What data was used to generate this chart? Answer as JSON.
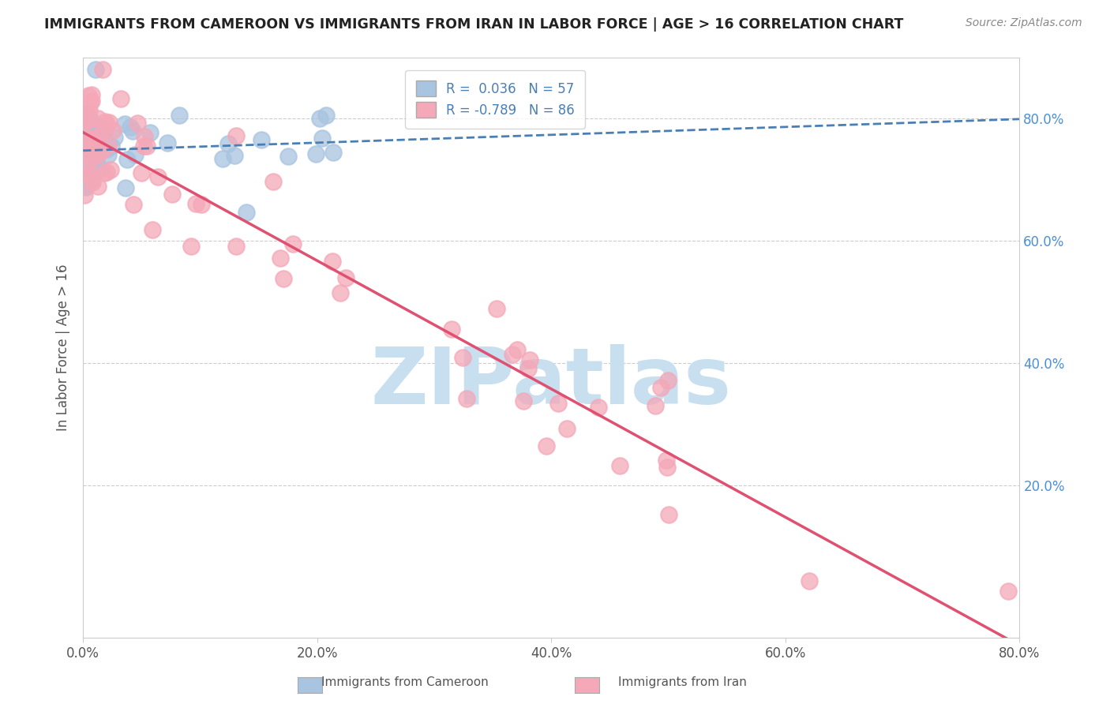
{
  "title": "IMMIGRANTS FROM CAMEROON VS IMMIGRANTS FROM IRAN IN LABOR FORCE | AGE > 16 CORRELATION CHART",
  "source": "Source: ZipAtlas.com",
  "ylabel": "In Labor Force | Age > 16",
  "xlim": [
    0.0,
    0.8
  ],
  "ylim": [
    -0.05,
    0.9
  ],
  "xtick_labels": [
    "0.0%",
    "20.0%",
    "40.0%",
    "60.0%",
    "80.0%"
  ],
  "xtick_vals": [
    0.0,
    0.2,
    0.4,
    0.6,
    0.8
  ],
  "ytick_labels": [
    "20.0%",
    "40.0%",
    "60.0%",
    "80.0%"
  ],
  "ytick_vals": [
    0.2,
    0.4,
    0.6,
    0.8
  ],
  "legend_blue_label": "R =  0.036   N = 57",
  "legend_pink_label": "R = -0.789   N = 86",
  "blue_color": "#a8c4e0",
  "pink_color": "#f4a8b8",
  "blue_line_color": "#4a7fb5",
  "pink_line_color": "#e05070",
  "watermark": "ZIPatlas",
  "watermark_color": "#c8dff0",
  "legend_label_blue": "Immigrants from Cameroon",
  "legend_label_pink": "Immigrants from Iran",
  "blue_R": 0.036,
  "blue_N": 57,
  "pink_R": -0.789,
  "pink_N": 86
}
